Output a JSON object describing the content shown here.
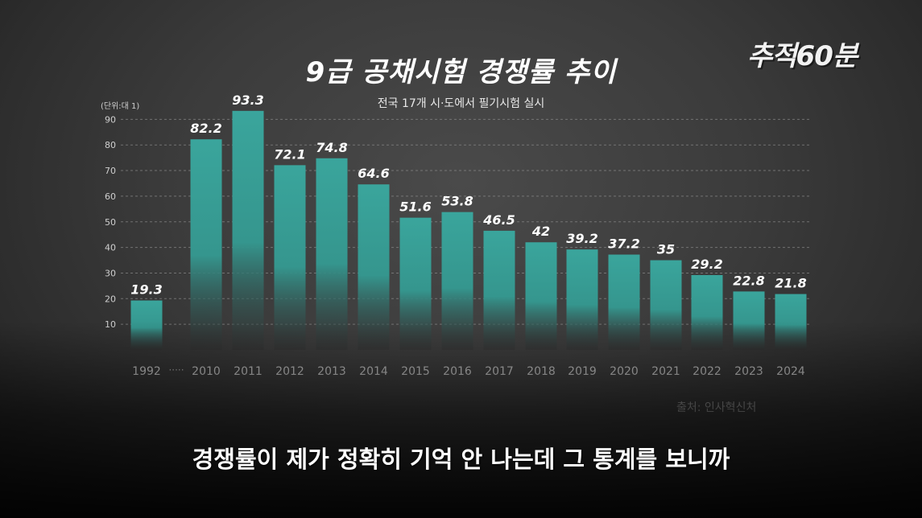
{
  "logo": {
    "text": "추적60분"
  },
  "subtitle_caption": "경쟁률이 제가 정확히 기억 안 나는데 그 통계를 보니까",
  "source": "출처: 인사혁신처",
  "colors": {
    "bar": "#3aa59c",
    "bar_fade": "#2f2f2f",
    "grid": "#8a8a8a",
    "text": "#ffffff"
  },
  "chart_data": {
    "type": "bar",
    "title": "9급 공채시험 경쟁률 추이",
    "subtitle": "전국 17개 시·도에서 필기시험 실시",
    "unit": "(단위:대 1)",
    "categories": [
      "1992",
      "2010",
      "2011",
      "2012",
      "2013",
      "2014",
      "2015",
      "2016",
      "2017",
      "2018",
      "2019",
      "2020",
      "2021",
      "2022",
      "2023",
      "2024"
    ],
    "values": [
      19.3,
      82.2,
      93.3,
      72.1,
      74.8,
      64.6,
      51.6,
      53.8,
      46.5,
      42,
      39.2,
      37.2,
      35,
      29.2,
      22.8,
      21.8
    ],
    "value_labels": [
      "19.3",
      "82.2",
      "93.3",
      "72.1",
      "74.8",
      "64.6",
      "51.6",
      "53.8",
      "46.5",
      "42",
      "39.2",
      "37.2",
      "35",
      "29.2",
      "22.8",
      "21.8"
    ],
    "gap_marker": "·····",
    "yticks": [
      10,
      20,
      30,
      40,
      50,
      60,
      70,
      80,
      90
    ],
    "ylim": [
      0,
      100
    ],
    "grid": true
  }
}
